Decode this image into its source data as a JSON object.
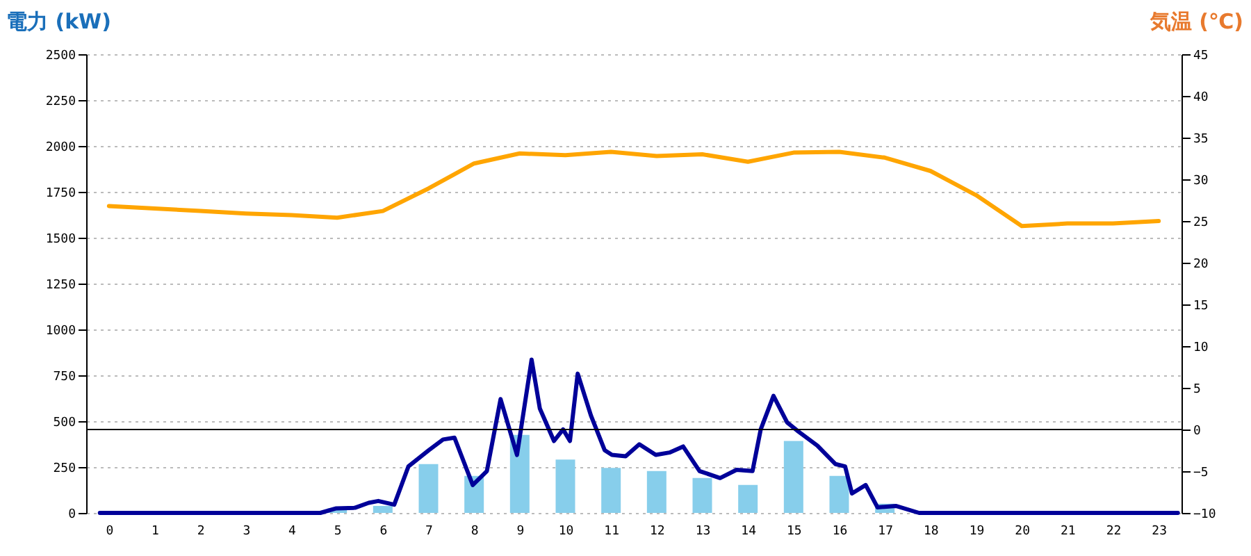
{
  "chart_data": {
    "type": "bar",
    "ylabel": "電力 (kW)",
    "y2label": "気温 (℃)",
    "x": [
      0,
      1,
      2,
      3,
      4,
      5,
      6,
      7,
      8,
      9,
      10,
      11,
      12,
      13,
      14,
      15,
      16,
      17,
      18,
      19,
      20,
      21,
      22,
      23
    ],
    "xlim": [
      -0.5,
      23.5
    ],
    "xticks": [
      0,
      1,
      2,
      3,
      4,
      5,
      6,
      7,
      8,
      9,
      10,
      11,
      12,
      13,
      14,
      15,
      16,
      17,
      18,
      19,
      20,
      21,
      22,
      23
    ],
    "ylim": [
      0,
      2500
    ],
    "yticks": [
      0,
      250,
      500,
      750,
      1000,
      1250,
      1500,
      1750,
      2000,
      2250,
      2500
    ],
    "y2lim": [
      -10,
      45
    ],
    "y2ticks": [
      -10,
      -5,
      0,
      5,
      10,
      15,
      20,
      25,
      30,
      35,
      40,
      45
    ],
    "grid": "y",
    "series": [
      {
        "color": "#87ceeb",
        "values": [
          0,
          0,
          0,
          0,
          0,
          25,
          38,
          266,
          202,
          425,
          291,
          245,
          228,
          190,
          152,
          392,
          202,
          50,
          0,
          0,
          0,
          0,
          0,
          0
        ]
      },
      {
        "type": "line",
        "color": "#000099",
        "x": [
          -0.2,
          4.63,
          4.98,
          5.39,
          5.69,
          5.9,
          6.25,
          6.56,
          7.01,
          7.32,
          7.57,
          7.97,
          8.28,
          8.58,
          8.94,
          9.26,
          9.44,
          9.75,
          9.95,
          10.1,
          10.27,
          10.56,
          10.86,
          11.02,
          11.32,
          11.62,
          11.98,
          12.28,
          12.58,
          12.94,
          13.39,
          13.75,
          14.1,
          14.28,
          14.56,
          14.86,
          15.11,
          15.52,
          15.92,
          16.13,
          16.28,
          16.58,
          16.84,
          17.24,
          17.75,
          23.42
        ],
        "values": [
          0,
          0,
          25,
          28,
          55,
          65,
          45,
          253,
          342,
          400,
          410,
          152,
          228,
          620,
          316,
          835,
          569,
          392,
          455,
          392,
          759,
          531,
          342,
          316,
          309,
          374,
          316,
          329,
          362,
          228,
          190,
          235,
          228,
          455,
          638,
          493,
          443,
          367,
          266,
          253,
          106,
          152,
          30,
          38,
          0,
          0
        ]
      },
      {
        "type": "line",
        "axis": "y2",
        "color": "#ffa500",
        "values": [
          26.8,
          26.5,
          26.2,
          25.9,
          25.7,
          25.4,
          26.2,
          28.9,
          31.9,
          33.1,
          32.9,
          33.3,
          32.8,
          33.0,
          32.1,
          33.2,
          33.3,
          32.6,
          31.0,
          28.1,
          24.4,
          24.7,
          24.7,
          25.0
        ]
      }
    ],
    "ref_lines": [
      {
        "axis": "y2",
        "value": 0,
        "color": "#000000"
      }
    ]
  }
}
